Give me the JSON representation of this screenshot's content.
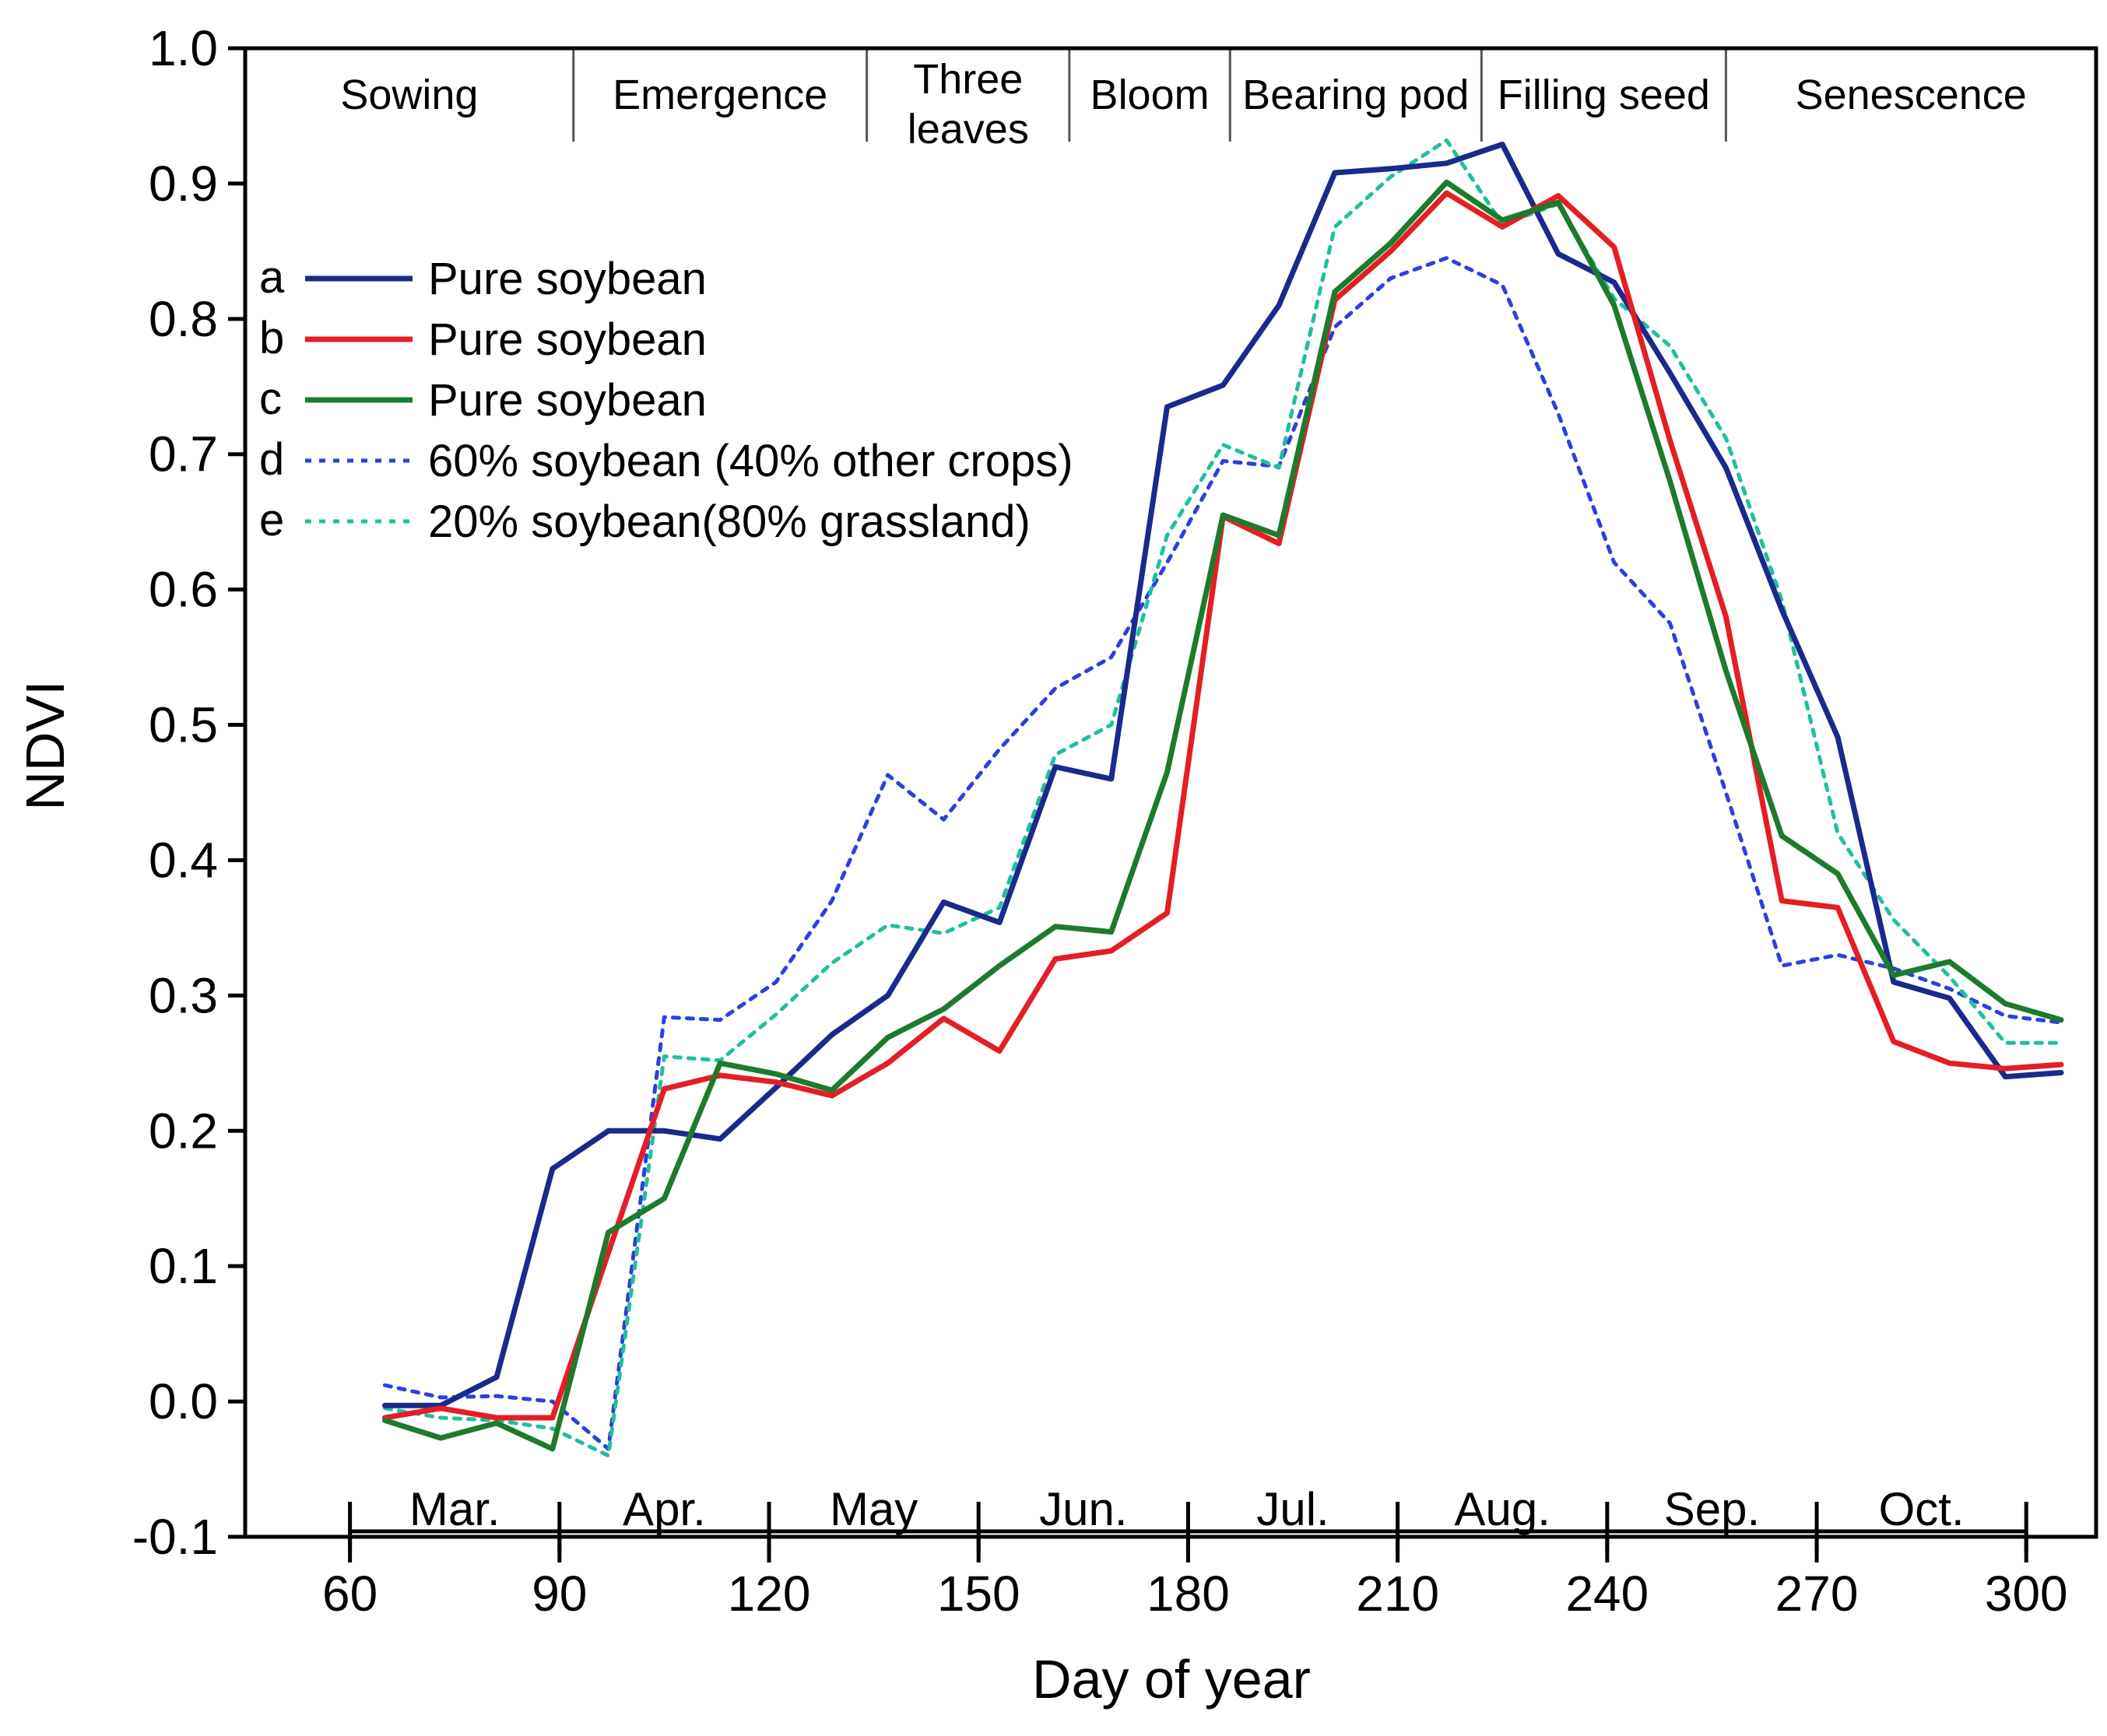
{
  "chart_data": {
    "type": "line",
    "title": "",
    "xlabel": "Day of year",
    "ylabel": "NDVI",
    "xlim": [
      45,
      310
    ],
    "ylim": [
      -0.1,
      1.0
    ],
    "xticks": [
      60,
      90,
      120,
      150,
      180,
      210,
      240,
      270,
      300
    ],
    "xtick_labels": [
      "60",
      "90",
      "120",
      "150",
      "180",
      "210",
      "240",
      "270",
      "300"
    ],
    "yticks": [
      -0.1,
      0.0,
      0.1,
      0.2,
      0.3,
      0.4,
      0.5,
      0.6,
      0.7,
      0.8,
      0.9,
      1.0
    ],
    "ytick_labels": [
      "-0.1",
      "0.0",
      "0.1",
      "0.2",
      "0.3",
      "0.4",
      "0.5",
      "0.6",
      "0.7",
      "0.8",
      "0.9",
      "1.0"
    ],
    "months": [
      {
        "label": "Mar.",
        "x": 75
      },
      {
        "label": "Apr.",
        "x": 105
      },
      {
        "label": "May",
        "x": 135
      },
      {
        "label": "Jun.",
        "x": 165
      },
      {
        "label": "Jul.",
        "x": 195
      },
      {
        "label": "Aug.",
        "x": 225
      },
      {
        "label": "Sep.",
        "x": 255
      },
      {
        "label": "Oct.",
        "x": 285
      }
    ],
    "month_dividers": [
      60,
      90,
      120,
      150,
      180,
      210,
      240,
      270,
      300
    ],
    "stages": [
      {
        "label": "Sowing",
        "start": 45,
        "end": 92
      },
      {
        "label": "Emergence",
        "start": 92,
        "end": 134
      },
      {
        "label": "Three leaves",
        "start": 134,
        "end": 163
      },
      {
        "label": "Bloom",
        "start": 163,
        "end": 186
      },
      {
        "label": "Bearing pod",
        "start": 186,
        "end": 222
      },
      {
        "label": "Filling seed",
        "start": 222,
        "end": 257
      },
      {
        "label": "Senescence",
        "start": 257,
        "end": 310
      }
    ],
    "x": [
      65,
      73,
      81,
      89,
      97,
      105,
      113,
      121,
      129,
      137,
      145,
      153,
      161,
      169,
      177,
      185,
      193,
      201,
      209,
      217,
      225,
      233,
      241,
      249,
      257,
      265,
      273,
      281,
      289,
      297,
      305
    ],
    "series": [
      {
        "letter": "a",
        "name": "Pure soybean",
        "color": "#1a2a8c",
        "dash": "solid",
        "values": [
          -0.003,
          -0.003,
          0.018,
          0.172,
          0.2,
          0.2,
          0.194,
          0.232,
          0.271,
          0.3,
          0.369,
          0.354,
          0.469,
          0.46,
          0.735,
          0.751,
          0.81,
          0.908,
          0.911,
          0.915,
          0.929,
          0.848,
          0.827,
          0.76,
          0.69,
          0.585,
          0.491,
          0.31,
          0.298,
          0.24,
          0.243
        ]
      },
      {
        "letter": "b",
        "name": "Pure soybean",
        "color": "#e41e26",
        "dash": "solid",
        "values": [
          -0.012,
          -0.005,
          -0.012,
          -0.012,
          0.11,
          0.231,
          0.241,
          0.236,
          0.226,
          0.25,
          0.283,
          0.259,
          0.327,
          0.333,
          0.361,
          0.654,
          0.634,
          0.814,
          0.85,
          0.893,
          0.868,
          0.891,
          0.853,
          0.71,
          0.58,
          0.37,
          0.365,
          0.266,
          0.25,
          0.246,
          0.249
        ]
      },
      {
        "letter": "c",
        "name": "Pure soybean",
        "color": "#1e7a2c",
        "dash": "solid",
        "values": [
          -0.014,
          -0.027,
          -0.016,
          -0.035,
          0.125,
          0.15,
          0.25,
          0.242,
          0.23,
          0.269,
          0.29,
          0.322,
          0.351,
          0.347,
          0.465,
          0.655,
          0.64,
          0.82,
          0.856,
          0.901,
          0.873,
          0.886,
          0.81,
          0.68,
          0.54,
          0.418,
          0.39,
          0.315,
          0.325,
          0.294,
          0.282
        ]
      },
      {
        "letter": "d",
        "name": "60% soybean (40% other crops)",
        "color": "#2b3fe0",
        "dash": "dotted",
        "values": [
          0.012,
          0.003,
          0.004,
          0.0,
          -0.035,
          0.284,
          0.282,
          0.31,
          0.37,
          0.463,
          0.43,
          0.482,
          0.527,
          0.55,
          0.62,
          0.695,
          0.691,
          0.794,
          0.83,
          0.845,
          0.825,
          0.73,
          0.62,
          0.575,
          0.45,
          0.322,
          0.33,
          0.32,
          0.305,
          0.285,
          0.28
        ]
      },
      {
        "letter": "e",
        "name": "20% soybean(80% grassland)",
        "color": "#1fbfa0",
        "dash": "dotted",
        "values": [
          -0.005,
          -0.012,
          -0.014,
          -0.02,
          -0.04,
          0.255,
          0.252,
          0.286,
          0.324,
          0.352,
          0.346,
          0.365,
          0.478,
          0.5,
          0.64,
          0.707,
          0.69,
          0.868,
          0.905,
          0.932,
          0.87,
          0.885,
          0.815,
          0.78,
          0.712,
          0.592,
          0.42,
          0.356,
          0.314,
          0.265,
          0.265
        ]
      }
    ]
  }
}
